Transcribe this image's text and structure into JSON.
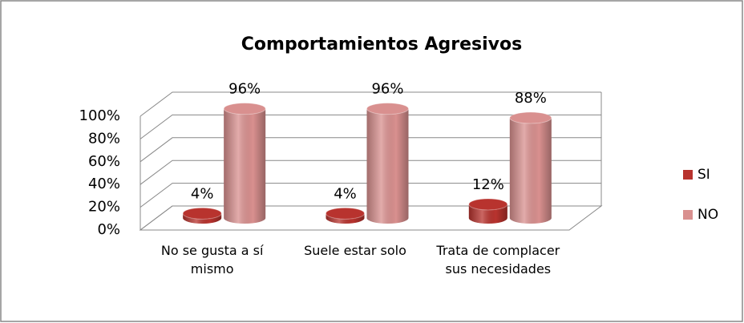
{
  "chart_data": {
    "type": "bar3d",
    "title": "Comportamientos Agresivos",
    "categories": [
      "No se gusta a sí mismo",
      "Suele estar solo",
      "Trata de complacer sus necesidades"
    ],
    "series": [
      {
        "name": "SI",
        "color": "#b8332e",
        "values": [
          4,
          4,
          12
        ],
        "value_labels": [
          "4%",
          "4%",
          "12%"
        ]
      },
      {
        "name": "NO",
        "color": "#d9908f",
        "values": [
          96,
          96,
          88
        ],
        "value_labels": [
          "96%",
          "96%",
          "88%"
        ]
      }
    ],
    "ylim": [
      0,
      100
    ],
    "yticks": [
      {
        "value": 0,
        "label": "0%"
      },
      {
        "value": 20,
        "label": "20%"
      },
      {
        "value": 40,
        "label": "40%"
      },
      {
        "value": 60,
        "label": "60%"
      },
      {
        "value": 80,
        "label": "80%"
      },
      {
        "value": 100,
        "label": "100%"
      }
    ],
    "grid": true,
    "legend": "right"
  }
}
